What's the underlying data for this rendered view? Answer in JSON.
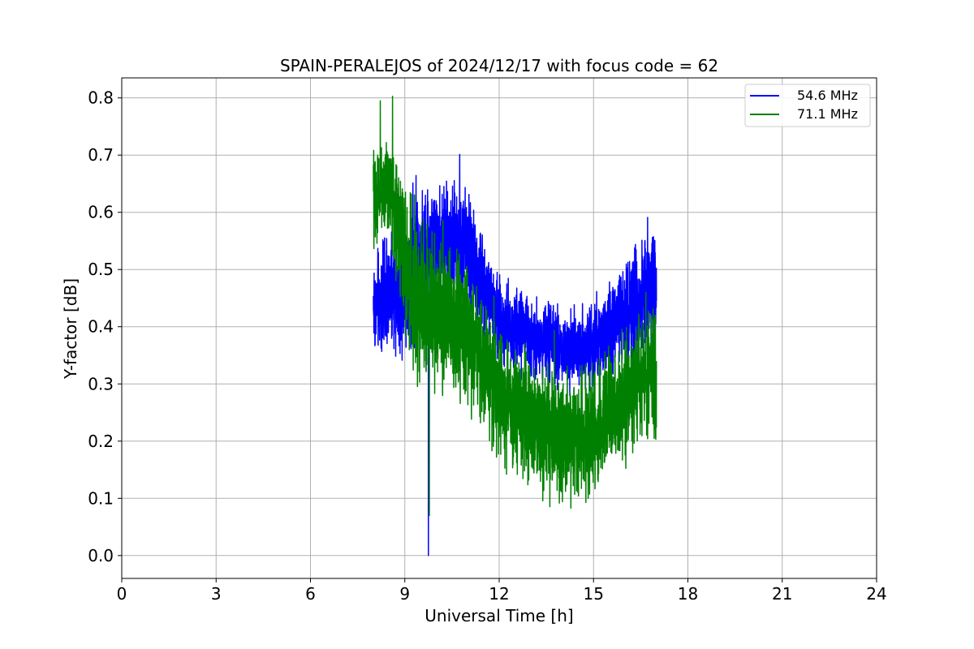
{
  "chart_data": {
    "type": "line",
    "title": "SPAIN-PERALEJOS of 2024/12/17 with focus code = 62",
    "xlabel": "Universal Time [h]",
    "ylabel": "Y-factor [dB]",
    "xlim": [
      0,
      24
    ],
    "ylim": [
      -0.04,
      0.835
    ],
    "xticks": [
      0,
      3,
      6,
      9,
      12,
      15,
      18,
      21,
      24
    ],
    "yticks": [
      0.0,
      0.1,
      0.2,
      0.3,
      0.4,
      0.5,
      0.6,
      0.7,
      0.8
    ],
    "ytick_labels": [
      "0.0",
      "0.1",
      "0.2",
      "0.3",
      "0.4",
      "0.5",
      "0.6",
      "0.7",
      "0.8"
    ],
    "grid": true,
    "legend_position": "top-right",
    "series": [
      {
        "name": "54.6 MHz",
        "color": "#0000ff",
        "x": [
          8.0,
          8.5,
          9.0,
          9.5,
          10.0,
          10.5,
          11.0,
          11.5,
          12.0,
          12.5,
          13.0,
          13.5,
          14.0,
          14.5,
          15.0,
          15.5,
          16.0,
          16.5,
          17.0
        ],
        "y": [
          0.44,
          0.45,
          0.47,
          0.52,
          0.55,
          0.55,
          0.53,
          0.47,
          0.41,
          0.4,
          0.38,
          0.37,
          0.36,
          0.36,
          0.37,
          0.39,
          0.42,
          0.45,
          0.47
        ],
        "spread": [
          0.09,
          0.1,
          0.12,
          0.11,
          0.1,
          0.1,
          0.1,
          0.09,
          0.07,
          0.07,
          0.07,
          0.07,
          0.07,
          0.07,
          0.07,
          0.08,
          0.1,
          0.12,
          0.11
        ],
        "spikes": [
          {
            "x": 9.75,
            "y": 0.0
          }
        ]
      },
      {
        "name": "71.1 MHz",
        "color": "#008000",
        "x": [
          8.0,
          8.5,
          9.0,
          9.5,
          10.0,
          10.5,
          11.0,
          11.5,
          12.0,
          12.5,
          13.0,
          13.5,
          14.0,
          14.5,
          15.0,
          15.5,
          16.0,
          16.5,
          17.0
        ],
        "y": [
          0.63,
          0.65,
          0.52,
          0.44,
          0.42,
          0.41,
          0.39,
          0.33,
          0.28,
          0.26,
          0.24,
          0.22,
          0.21,
          0.21,
          0.22,
          0.25,
          0.28,
          0.31,
          0.33
        ],
        "spread": [
          0.08,
          0.09,
          0.14,
          0.14,
          0.13,
          0.12,
          0.12,
          0.12,
          0.11,
          0.11,
          0.11,
          0.11,
          0.11,
          0.11,
          0.11,
          0.11,
          0.11,
          0.11,
          0.12
        ],
        "spikes": [
          {
            "x": 9.78,
            "y": 0.07
          },
          {
            "x": 8.22,
            "y": 0.795
          }
        ]
      }
    ]
  }
}
